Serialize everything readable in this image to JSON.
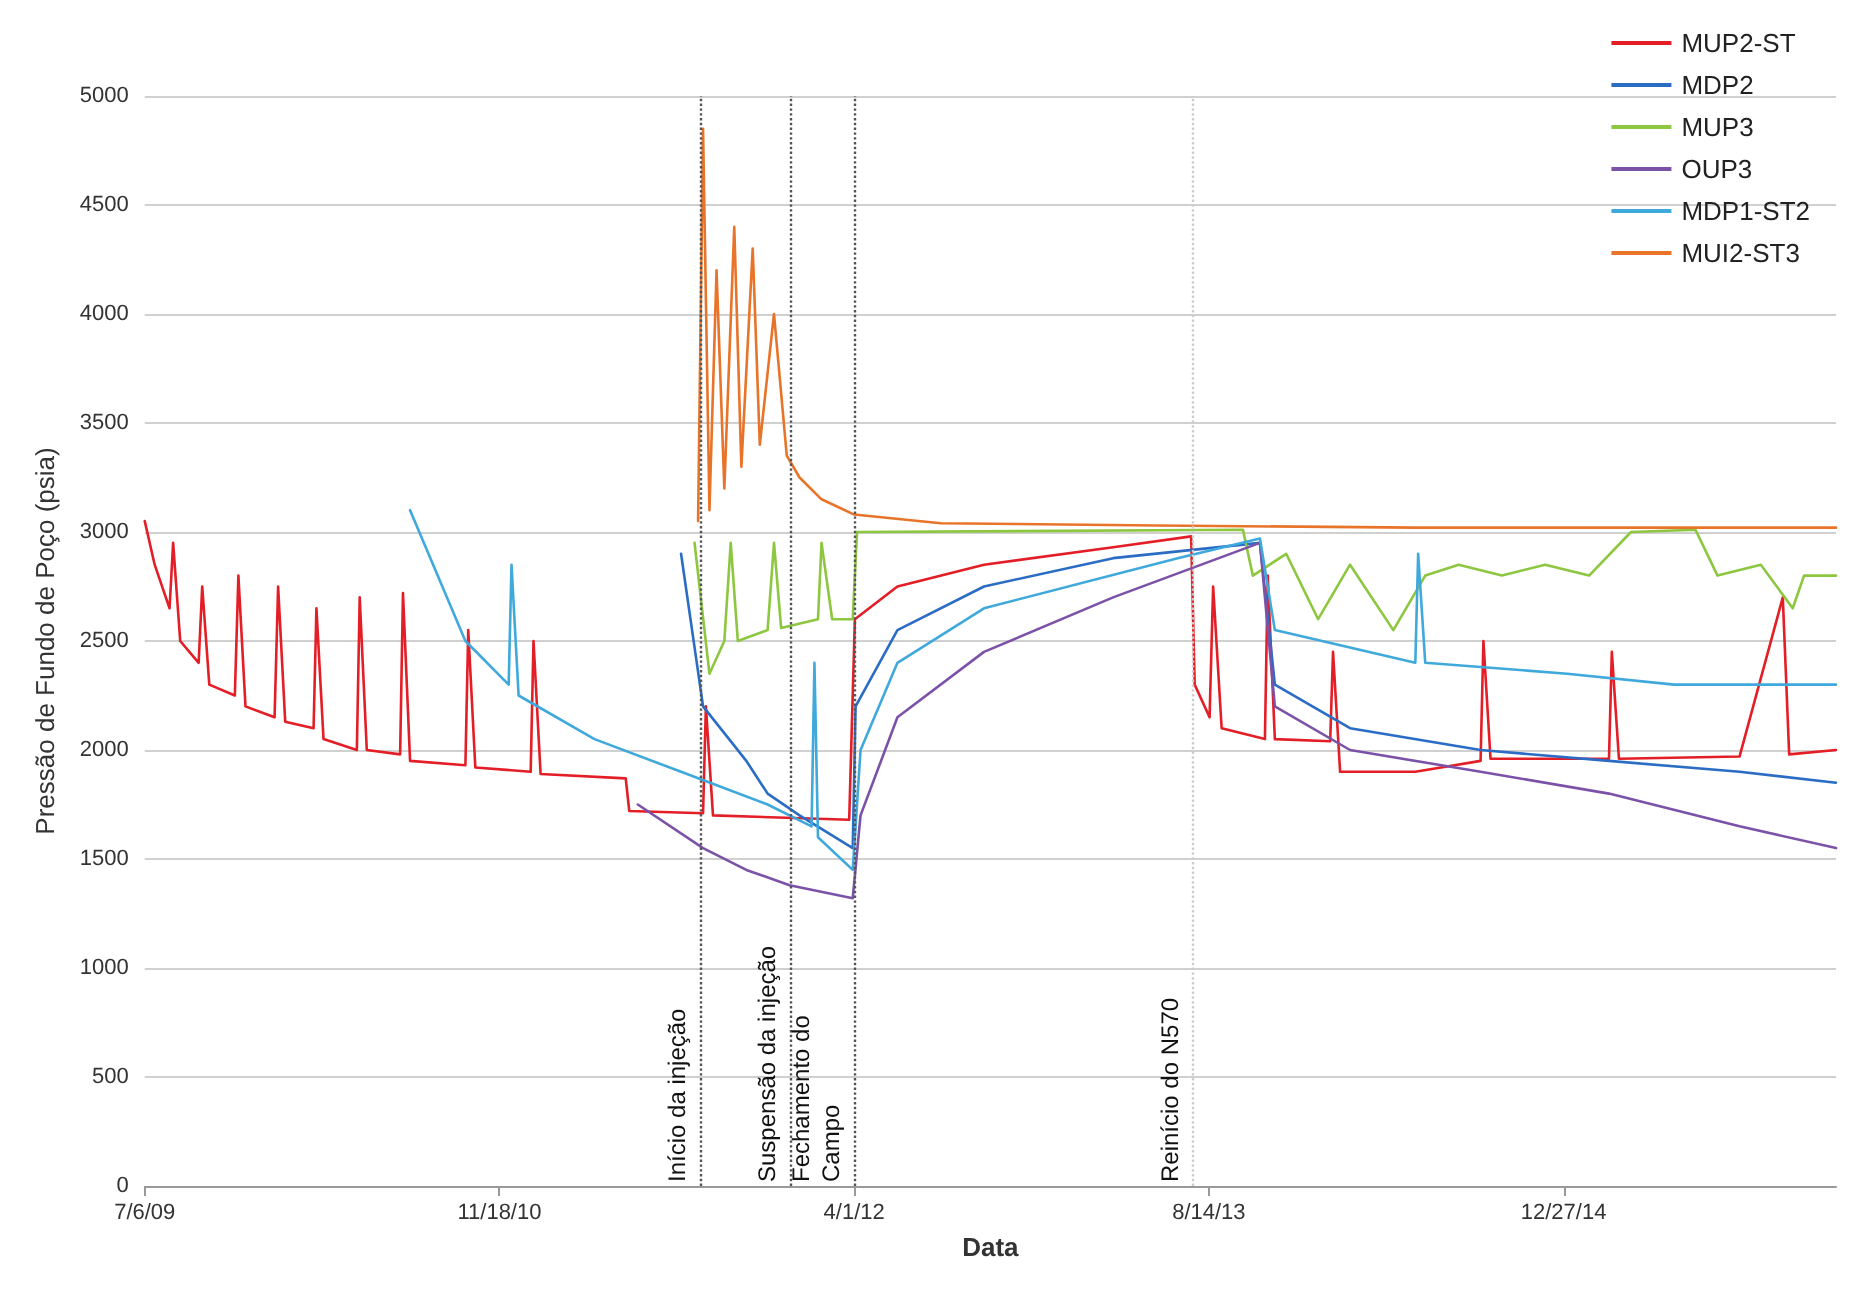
{
  "chart_data": {
    "type": "line",
    "xlabel": "Data",
    "ylabel": "Pressão de Fundo de Poço (psia)",
    "xlim": [
      "2009-07-06",
      "2016-01-15"
    ],
    "xticks": [
      {
        "value": "2009-07-06",
        "label": "7/6/09"
      },
      {
        "value": "2010-11-18",
        "label": "11/18/10"
      },
      {
        "value": "2012-04-01",
        "label": "4/1/12"
      },
      {
        "value": "2013-08-14",
        "label": "8/14/13"
      },
      {
        "value": "2014-12-27",
        "label": "12/27/14"
      }
    ],
    "ylim": [
      0,
      5000
    ],
    "yticks": [
      0,
      500,
      1000,
      1500,
      2000,
      2500,
      3000,
      3500,
      4000,
      4500,
      5000
    ],
    "grid": "y",
    "legend": "top right",
    "marker": "none",
    "line_style": "solid",
    "ref_lines": [
      {
        "axis": "x",
        "value": "2011-08-28",
        "label": "Início da injeção",
        "color": "#555555",
        "line_style": "dotted"
      },
      {
        "axis": "x",
        "value": "2012-01-01",
        "label": "Suspensão da injeção",
        "color": "#555555",
        "line_style": "dotted"
      },
      {
        "axis": "x",
        "value": "2012-04-01",
        "label": "Fechamento do\nCampo",
        "color": "#555555",
        "line_style": "dotted"
      },
      {
        "axis": "x",
        "value": "2013-07-23",
        "label": "Reinício do N570",
        "color": "#cccccc",
        "line_style": "dotted"
      }
    ],
    "series": [
      {
        "name": "MUP2-ST",
        "color": "#e41e26",
        "x": [
          "2009-07-06",
          "2009-07-20",
          "2009-08-10",
          "2009-08-15",
          "2009-08-25",
          "2009-09-20",
          "2009-09-25",
          "2009-10-05",
          "2009-11-10",
          "2009-11-15",
          "2009-11-25",
          "2010-01-05",
          "2010-01-10",
          "2010-01-20",
          "2010-03-01",
          "2010-03-05",
          "2010-03-15",
          "2010-05-01",
          "2010-05-05",
          "2010-05-15",
          "2010-07-01",
          "2010-07-05",
          "2010-07-15",
          "2010-10-01",
          "2010-10-05",
          "2010-10-15",
          "2011-01-01",
          "2011-01-05",
          "2011-01-15",
          "2011-05-15",
          "2011-05-20",
          "2011-09-01",
          "2011-09-05",
          "2011-09-15",
          "2012-03-25",
          "2012-04-02",
          "2012-06-01",
          "2012-10-01",
          "2013-04-01",
          "2013-07-20",
          "2013-07-25",
          "2013-08-15",
          "2013-08-20",
          "2013-09-01",
          "2013-11-01",
          "2013-11-05",
          "2013-11-15",
          "2014-02-01",
          "2014-02-05",
          "2014-02-15",
          "2014-06-01",
          "2014-09-01",
          "2014-09-05",
          "2014-09-15",
          "2015-03-01",
          "2015-03-05",
          "2015-03-15",
          "2015-09-01",
          "2015-11-01",
          "2015-11-10",
          "2016-01-15"
        ],
        "values": [
          3050,
          2850,
          2650,
          2950,
          2500,
          2400,
          2750,
          2300,
          2250,
          2800,
          2200,
          2150,
          2750,
          2130,
          2100,
          2650,
          2050,
          2000,
          2700,
          2000,
          1980,
          2720,
          1950,
          1930,
          2550,
          1920,
          1900,
          2500,
          1890,
          1870,
          1720,
          1710,
          2200,
          1700,
          1680,
          2600,
          2750,
          2850,
          2930,
          2980,
          2300,
          2150,
          2750,
          2100,
          2050,
          2800,
          2050,
          2040,
          2450,
          1900,
          1900,
          1950,
          2500,
          1960,
          1960,
          2450,
          1960,
          1970,
          2700,
          1980,
          2000
        ]
      },
      {
        "name": "MDP2",
        "color": "#2b6cc4",
        "x": [
          "2011-08-01",
          "2011-09-01",
          "2011-11-01",
          "2011-12-01",
          "2012-01-15",
          "2012-03-30",
          "2012-04-03",
          "2012-06-01",
          "2012-10-01",
          "2013-04-01",
          "2013-10-25",
          "2013-11-15",
          "2014-03-01",
          "2014-09-01",
          "2015-03-01",
          "2015-09-01",
          "2016-01-15"
        ],
        "values": [
          2900,
          2200,
          1950,
          1800,
          1700,
          1550,
          2200,
          2550,
          2750,
          2880,
          2950,
          2300,
          2100,
          2000,
          1950,
          1900,
          1850
        ]
      },
      {
        "name": "MUP3",
        "color": "#8dc63f",
        "x": [
          "2011-08-20",
          "2011-09-10",
          "2011-10-01",
          "2011-10-10",
          "2011-10-20",
          "2011-12-01",
          "2011-12-10",
          "2011-12-20",
          "2012-02-10",
          "2012-02-15",
          "2012-03-01",
          "2012-03-30",
          "2012-04-05",
          "2013-10-01",
          "2013-10-15",
          "2013-12-01",
          "2014-01-15",
          "2014-03-01",
          "2014-05-01",
          "2014-06-15",
          "2014-08-01",
          "2014-10-01",
          "2014-12-01",
          "2015-02-01",
          "2015-04-01",
          "2015-07-01",
          "2015-08-01",
          "2015-10-01",
          "2015-11-15",
          "2015-12-01",
          "2016-01-15"
        ],
        "values": [
          2950,
          2350,
          2500,
          2950,
          2500,
          2550,
          2950,
          2560,
          2600,
          2950,
          2600,
          2600,
          3000,
          3010,
          2800,
          2900,
          2600,
          2850,
          2550,
          2800,
          2850,
          2800,
          2850,
          2800,
          3000,
          3010,
          2800,
          2850,
          2650,
          2800,
          2800
        ]
      },
      {
        "name": "OUP3",
        "color": "#7b52a8",
        "x": [
          "2011-06-01",
          "2011-09-01",
          "2011-11-01",
          "2012-01-01",
          "2012-03-30",
          "2012-04-10",
          "2012-06-01",
          "2012-10-01",
          "2013-04-01",
          "2013-10-25",
          "2013-11-15",
          "2014-03-01",
          "2014-09-01",
          "2015-03-01",
          "2015-09-01",
          "2016-01-15"
        ],
        "values": [
          1750,
          1550,
          1450,
          1380,
          1320,
          1700,
          2150,
          2450,
          2700,
          2950,
          2200,
          2000,
          1900,
          1800,
          1650,
          1550
        ]
      },
      {
        "name": "MDP1-ST2",
        "color": "#3fa9dc",
        "x": [
          "2010-07-15",
          "2010-10-01",
          "2010-12-01",
          "2010-12-05",
          "2010-12-15",
          "2011-04-01",
          "2011-08-01",
          "2011-12-01",
          "2012-02-01",
          "2012-02-05",
          "2012-02-10",
          "2012-03-30",
          "2012-04-10",
          "2012-06-01",
          "2012-10-01",
          "2013-07-01",
          "2013-10-25",
          "2013-11-15",
          "2014-06-01",
          "2014-06-05",
          "2014-06-15",
          "2015-01-01",
          "2015-06-01",
          "2016-01-15"
        ],
        "values": [
          3100,
          2500,
          2300,
          2850,
          2250,
          2050,
          1900,
          1750,
          1650,
          2400,
          1600,
          1450,
          2000,
          2400,
          2650,
          2880,
          2970,
          2550,
          2400,
          2900,
          2400,
          2350,
          2300,
          2300
        ]
      },
      {
        "name": "MUI2-ST3",
        "color": "#e8742a",
        "x": [
          "2011-08-25",
          "2011-09-01",
          "2011-09-10",
          "2011-09-20",
          "2011-10-01",
          "2011-10-15",
          "2011-10-25",
          "2011-11-10",
          "2011-11-20",
          "2011-12-10",
          "2011-12-28",
          "2012-01-15",
          "2012-02-15",
          "2012-04-01",
          "2012-08-01",
          "2013-06-01",
          "2014-06-01",
          "2015-06-01",
          "2016-01-15"
        ],
        "values": [
          3050,
          4850,
          3100,
          4200,
          3200,
          4400,
          3300,
          4300,
          3400,
          4000,
          3350,
          3250,
          3150,
          3080,
          3040,
          3030,
          3020,
          3020,
          3020
        ]
      }
    ]
  }
}
